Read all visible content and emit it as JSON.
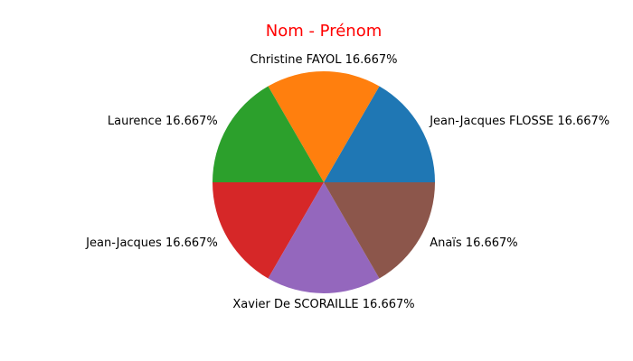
{
  "chart_data": {
    "type": "pie",
    "title": "Nom - Prénom",
    "title_color": "#ff0000",
    "slices": [
      {
        "label": "Jean-Jacques FLOSSE",
        "value": 16.667,
        "pct_label": "16.667%",
        "color": "#1f77b4"
      },
      {
        "label": "Christine FAYOL",
        "value": 16.667,
        "pct_label": "16.667%",
        "color": "#ff7f0e"
      },
      {
        "label": "Laurence",
        "value": 16.667,
        "pct_label": "16.667%",
        "color": "#2ca02c"
      },
      {
        "label": "Jean-Jacques",
        "value": 16.667,
        "pct_label": "16.667%",
        "color": "#d62728"
      },
      {
        "label": "Xavier De SCORAILLE",
        "value": 16.667,
        "pct_label": "16.667%",
        "color": "#9467bd"
      },
      {
        "label": "Anaïs",
        "value": 16.667,
        "pct_label": "16.667%",
        "color": "#8c564b"
      }
    ],
    "start_angle_deg": 0,
    "direction": "counterclockwise"
  }
}
